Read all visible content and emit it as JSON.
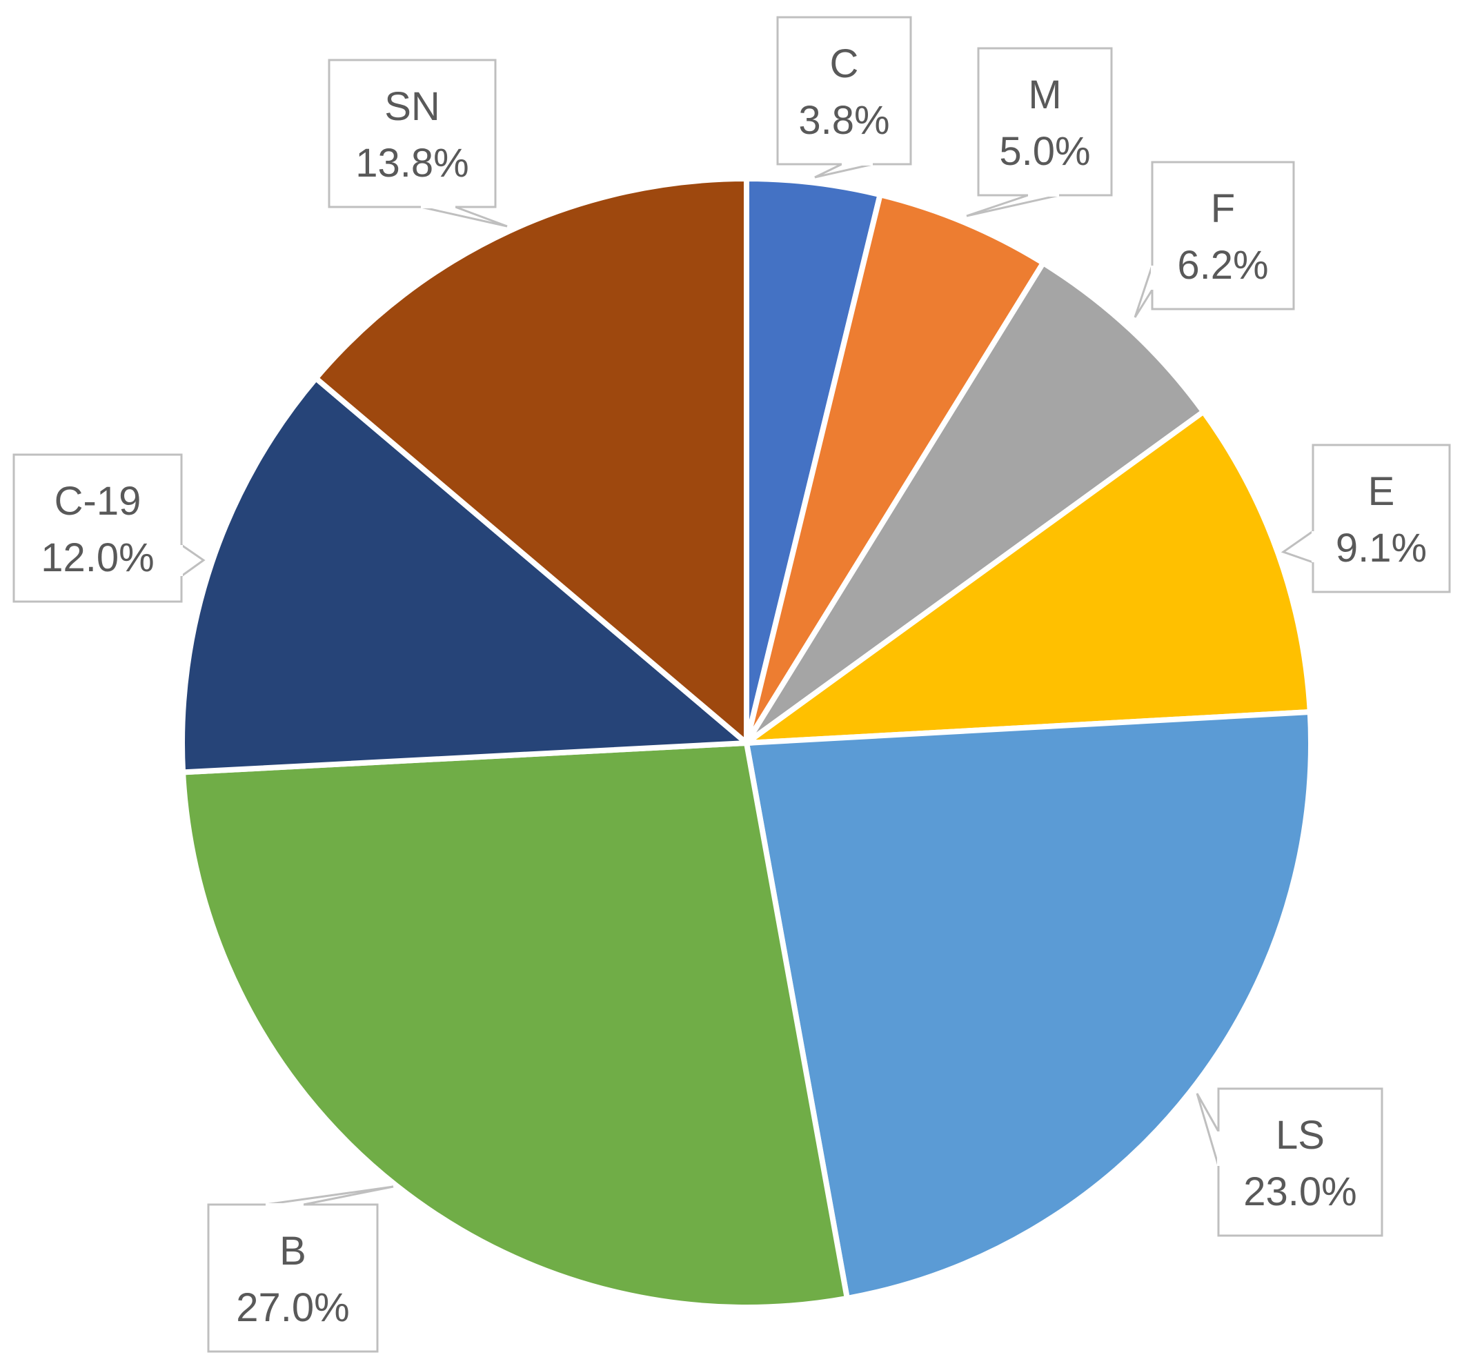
{
  "chart_data": {
    "type": "pie",
    "title": "",
    "slices": [
      {
        "label": "C",
        "value": 3.8,
        "value_label": "3.8%",
        "color": "#4472C4"
      },
      {
        "label": "M",
        "value": 5.0,
        "value_label": "5.0%",
        "color": "#ED7D31"
      },
      {
        "label": "F",
        "value": 6.2,
        "value_label": "6.2%",
        "color": "#A5A5A5"
      },
      {
        "label": "E",
        "value": 9.1,
        "value_label": "9.1%",
        "color": "#FFC000"
      },
      {
        "label": "LS",
        "value": 23.0,
        "value_label": "23.0%",
        "color": "#5B9BD5"
      },
      {
        "label": "B",
        "value": 27.0,
        "value_label": "27.0%",
        "color": "#70AD47"
      },
      {
        "label": "C-19",
        "value": 12.0,
        "value_label": "12.0%",
        "color": "#264478"
      },
      {
        "label": "SN",
        "value": 13.8,
        "value_label": "13.8%",
        "color": "#9E480E"
      }
    ],
    "start_angle": "12 o'clock",
    "direction": "clockwise",
    "data_labels": "callouts with category name and percentage",
    "legend": "none"
  }
}
